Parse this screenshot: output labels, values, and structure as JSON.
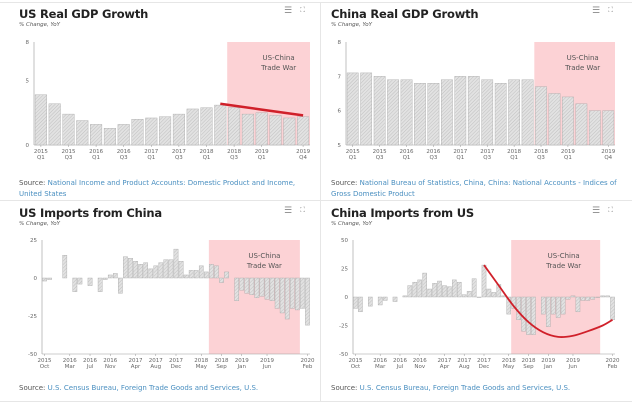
{
  "icons": {
    "menu": "hamburger-menu-icon",
    "expand": "fullscreen-icon"
  },
  "colors": {
    "bar": "#d9d9d9",
    "bar_border": "#a8a8a8",
    "shade": "#fcd2d5",
    "trend": "#d0202a",
    "link": "#4a8fc0"
  },
  "source_label": "Source:",
  "chart_data": [
    {
      "type": "bar",
      "title": "US Real GDP Growth",
      "subtitle": "% Change, YoY",
      "categories": [
        "2015 Q1",
        "2015 Q2",
        "2015 Q3",
        "2015 Q4",
        "2016 Q1",
        "2016 Q2",
        "2016 Q3",
        "2016 Q4",
        "2017 Q1",
        "2017 Q2",
        "2017 Q3",
        "2017 Q4",
        "2018 Q1",
        "2018 Q2",
        "2018 Q3",
        "2018 Q4",
        "2019 Q1",
        "2019 Q2",
        "2019 Q3",
        "2019 Q4"
      ],
      "values": [
        3.9,
        3.2,
        2.4,
        1.9,
        1.6,
        1.3,
        1.6,
        2.0,
        2.1,
        2.2,
        2.4,
        2.8,
        2.9,
        3.1,
        2.9,
        2.4,
        2.5,
        2.3,
        2.1,
        2.2
      ],
      "ylim": [
        0,
        8
      ],
      "yticks": [
        0,
        5,
        8
      ],
      "xticks": [
        {
          "i": 0,
          "l1": "2015",
          "l2": "Q1"
        },
        {
          "i": 2,
          "l1": "2015",
          "l2": "Q3"
        },
        {
          "i": 4,
          "l1": "2016",
          "l2": "Q1"
        },
        {
          "i": 6,
          "l1": "2016",
          "l2": "Q3"
        },
        {
          "i": 8,
          "l1": "2017",
          "l2": "Q1"
        },
        {
          "i": 10,
          "l1": "2017",
          "l2": "Q3"
        },
        {
          "i": 12,
          "l1": "2018",
          "l2": "Q1"
        },
        {
          "i": 14,
          "l1": "2018",
          "l2": "Q3"
        },
        {
          "i": 16,
          "l1": "2019",
          "l2": "Q1"
        },
        {
          "i": 19,
          "l1": "2019",
          "l2": "Q4"
        }
      ],
      "shade": {
        "from": "2018 Q3",
        "to": "2019 Q4",
        "label1": "US-China",
        "label2": "Trade War"
      },
      "trend": [
        [
          "2018 Q2",
          3.2
        ],
        [
          "2019 Q4",
          2.3
        ]
      ],
      "source": "National Income and Product Accounts: Domestic Product and Income, United States"
    },
    {
      "type": "bar",
      "title": "China Real GDP Growth",
      "subtitle": "% Change, YoY",
      "categories": [
        "2015 Q1",
        "2015 Q2",
        "2015 Q3",
        "2015 Q4",
        "2016 Q1",
        "2016 Q2",
        "2016 Q3",
        "2016 Q4",
        "2017 Q1",
        "2017 Q2",
        "2017 Q3",
        "2017 Q4",
        "2018 Q1",
        "2018 Q2",
        "2018 Q3",
        "2018 Q4",
        "2019 Q1",
        "2019 Q2",
        "2019 Q3",
        "2019 Q4"
      ],
      "values": [
        7.1,
        7.1,
        7.0,
        6.9,
        6.9,
        6.8,
        6.8,
        6.9,
        7.0,
        7.0,
        6.9,
        6.8,
        6.9,
        6.9,
        6.7,
        6.5,
        6.4,
        6.2,
        6.0,
        6.0
      ],
      "ylim": [
        5,
        8
      ],
      "yticks": [
        5,
        6,
        7,
        8
      ],
      "xticks": [
        {
          "i": 0,
          "l1": "2015",
          "l2": "Q1"
        },
        {
          "i": 2,
          "l1": "2015",
          "l2": "Q3"
        },
        {
          "i": 4,
          "l1": "2016",
          "l2": "Q1"
        },
        {
          "i": 6,
          "l1": "2016",
          "l2": "Q3"
        },
        {
          "i": 8,
          "l1": "2017",
          "l2": "Q1"
        },
        {
          "i": 10,
          "l1": "2017",
          "l2": "Q3"
        },
        {
          "i": 12,
          "l1": "2018",
          "l2": "Q1"
        },
        {
          "i": 14,
          "l1": "2018",
          "l2": "Q3"
        },
        {
          "i": 16,
          "l1": "2019",
          "l2": "Q1"
        },
        {
          "i": 19,
          "l1": "2019",
          "l2": "Q4"
        }
      ],
      "shade": {
        "from": "2018 Q3",
        "to": "2019 Q4",
        "label1": "US-China",
        "label2": "Trade War"
      },
      "trend": [],
      "source": "National Bureau of Statistics, China, China: National Accounts - Indices of Gross Domestic Product"
    },
    {
      "type": "bar",
      "title": "US Imports from China",
      "subtitle": "% Change, YoY",
      "categories": [
        "2015 Oct",
        "2015 Nov",
        "2015 Dec",
        "2016 Jan",
        "2016 Feb",
        "2016 Mar",
        "2016 Apr",
        "2016 May",
        "2016 Jun",
        "2016 Jul",
        "2016 Aug",
        "2016 Sep",
        "2016 Oct",
        "2016 Nov",
        "2016 Dec",
        "2017 Jan",
        "2017 Feb",
        "2017 Mar",
        "2017 Apr",
        "2017 May",
        "2017 Jun",
        "2017 Jul",
        "2017 Aug",
        "2017 Sep",
        "2017 Oct",
        "2017 Nov",
        "2017 Dec",
        "2018 Jan",
        "2018 Feb",
        "2018 Mar",
        "2018 Apr",
        "2018 May",
        "2018 Jun",
        "2018 Jul",
        "2018 Aug",
        "2018 Sep",
        "2018 Oct",
        "2018 Nov",
        "2018 Dec",
        "2019 Jan",
        "2019 Feb",
        "2019 Mar",
        "2019 Apr",
        "2019 May",
        "2019 Jun",
        "2019 Jul",
        "2019 Aug",
        "2019 Sep",
        "2019 Oct",
        "2019 Nov",
        "2019 Dec",
        "2020 Jan",
        "2020 Feb"
      ],
      "values": [
        -2,
        -1,
        null,
        null,
        15,
        null,
        -9,
        -4,
        null,
        -5,
        null,
        -9,
        -1,
        2,
        3,
        -10,
        14,
        13,
        11,
        9,
        10,
        6,
        8,
        10,
        12,
        12,
        19,
        11,
        2,
        5,
        5,
        8,
        4,
        9,
        8,
        -3,
        4,
        null,
        -15,
        -8,
        -10,
        -11,
        -13,
        -12,
        -14,
        -15,
        -20,
        -23,
        -27,
        -20,
        -21,
        -20,
        -31
      ],
      "ylim": [
        -50,
        25
      ],
      "yticks": [
        -50,
        -25,
        0,
        25
      ],
      "xticks": [
        {
          "i": 0,
          "l1": "2015",
          "l2": "Oct"
        },
        {
          "i": 5,
          "l1": "2016",
          "l2": "Mar"
        },
        {
          "i": 9,
          "l1": "2016",
          "l2": "Jul"
        },
        {
          "i": 13,
          "l1": "2016",
          "l2": "Nov"
        },
        {
          "i": 18,
          "l1": "2017",
          "l2": "Apr"
        },
        {
          "i": 22,
          "l1": "2017",
          "l2": "Aug"
        },
        {
          "i": 26,
          "l1": "2017",
          "l2": "Dec"
        },
        {
          "i": 31,
          "l1": "2018",
          "l2": "May"
        },
        {
          "i": 35,
          "l1": "2018",
          "l2": "Sep"
        },
        {
          "i": 39,
          "l1": "2019",
          "l2": "Jan"
        },
        {
          "i": 44,
          "l1": "2019",
          "l2": "Jun"
        },
        {
          "i": 52,
          "l1": "2020",
          "l2": "Feb"
        }
      ],
      "shade": {
        "from": "2018 Jul",
        "to": "2019 Dec",
        "label1": "US-China",
        "label2": "Trade War"
      },
      "trend": [],
      "source": "U.S. Census Bureau, Foreign Trade Goods and Services, U.S."
    },
    {
      "type": "bar",
      "title": "China Imports from US",
      "subtitle": "% Change, YoY",
      "categories": [
        "2015 Oct",
        "2015 Nov",
        "2015 Dec",
        "2016 Jan",
        "2016 Feb",
        "2016 Mar",
        "2016 Apr",
        "2016 May",
        "2016 Jun",
        "2016 Jul",
        "2016 Aug",
        "2016 Sep",
        "2016 Oct",
        "2016 Nov",
        "2016 Dec",
        "2017 Jan",
        "2017 Feb",
        "2017 Mar",
        "2017 Apr",
        "2017 May",
        "2017 Jun",
        "2017 Jul",
        "2017 Aug",
        "2017 Sep",
        "2017 Oct",
        "2017 Nov",
        "2017 Dec",
        "2018 Jan",
        "2018 Feb",
        "2018 Mar",
        "2018 Apr",
        "2018 May",
        "2018 Jun",
        "2018 Jul",
        "2018 Aug",
        "2018 Sep",
        "2018 Oct",
        "2018 Nov",
        "2018 Dec",
        "2019 Jan",
        "2019 Feb",
        "2019 Mar",
        "2019 Apr",
        "2019 May",
        "2019 Jun",
        "2019 Jul",
        "2019 Aug",
        "2019 Sep",
        "2019 Oct",
        "2019 Nov",
        "2019 Dec",
        "2020 Jan",
        "2020 Feb"
      ],
      "values": [
        -10,
        -13,
        null,
        -8,
        null,
        -7,
        -3,
        null,
        -4,
        null,
        1,
        10,
        13,
        15,
        21,
        7,
        12,
        14,
        10,
        9,
        15,
        13,
        2,
        5,
        16,
        0,
        28,
        7,
        4,
        11,
        1,
        -15,
        -10,
        -20,
        -30,
        -33,
        -33,
        null,
        -15,
        -26,
        -15,
        -18,
        -15,
        -2,
        1,
        -13,
        -3,
        -3,
        -2,
        0,
        1,
        1,
        -20
      ],
      "ylim": [
        -50,
        50
      ],
      "yticks": [
        -50,
        -25,
        0,
        25,
        50
      ],
      "xticks": [
        {
          "i": 0,
          "l1": "2015",
          "l2": "Oct"
        },
        {
          "i": 5,
          "l1": "2016",
          "l2": "Mar"
        },
        {
          "i": 9,
          "l1": "2016",
          "l2": "Jul"
        },
        {
          "i": 13,
          "l1": "2016",
          "l2": "Nov"
        },
        {
          "i": 18,
          "l1": "2017",
          "l2": "Apr"
        },
        {
          "i": 22,
          "l1": "2017",
          "l2": "Aug"
        },
        {
          "i": 26,
          "l1": "2017",
          "l2": "Dec"
        },
        {
          "i": 31,
          "l1": "2018",
          "l2": "May"
        },
        {
          "i": 35,
          "l1": "2018",
          "l2": "Sep"
        },
        {
          "i": 39,
          "l1": "2019",
          "l2": "Jan"
        },
        {
          "i": 44,
          "l1": "2019",
          "l2": "Jun"
        },
        {
          "i": 52,
          "l1": "2020",
          "l2": "Feb"
        }
      ],
      "shade": {
        "from": "2018 Jun",
        "to": "2019 Nov",
        "label1": "US-China",
        "label2": "Trade War"
      },
      "trend": [
        [
          "2017 Dec",
          28
        ],
        [
          "2018 Mar",
          10
        ],
        [
          "2018 Jun",
          -8
        ],
        [
          "2018 Sep",
          -22
        ],
        [
          "2018 Dec",
          -31
        ],
        [
          "2019 Mar",
          -35
        ],
        [
          "2019 Jun",
          -34
        ],
        [
          "2019 Sep",
          -30
        ],
        [
          "2019 Dec",
          -25
        ],
        [
          "2020 Feb",
          -20
        ]
      ],
      "source": "U.S. Census Bureau, Foreign Trade Goods and Services, U.S."
    }
  ]
}
